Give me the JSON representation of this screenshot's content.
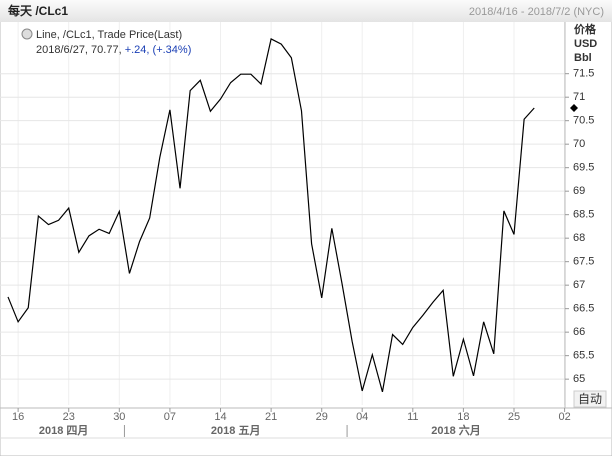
{
  "chart_data": {
    "type": "line",
    "title": "每天 /CLc1",
    "date_range": "2018/4/16 - 2018/7/2 (NYC)",
    "unit_labels": [
      "价格",
      "USD",
      "Bbl"
    ],
    "auto_button": "自动",
    "legend": {
      "series_label": "Line, /CLc1, Trade Price(Last)",
      "last": "2018/6/27, 70.77,",
      "change": "+.24, (+.34%)"
    },
    "x": [
      "2018-04-13",
      "2018-04-16",
      "2018-04-17",
      "2018-04-18",
      "2018-04-19",
      "2018-04-20",
      "2018-04-23",
      "2018-04-24",
      "2018-04-25",
      "2018-04-26",
      "2018-04-27",
      "2018-04-30",
      "2018-05-01",
      "2018-05-02",
      "2018-05-03",
      "2018-05-04",
      "2018-05-07",
      "2018-05-08",
      "2018-05-09",
      "2018-05-10",
      "2018-05-11",
      "2018-05-14",
      "2018-05-15",
      "2018-05-16",
      "2018-05-17",
      "2018-05-18",
      "2018-05-21",
      "2018-05-22",
      "2018-05-23",
      "2018-05-24",
      "2018-05-25",
      "2018-05-29",
      "2018-05-30",
      "2018-05-31",
      "2018-06-01",
      "2018-06-04",
      "2018-06-05",
      "2018-06-06",
      "2018-06-07",
      "2018-06-08",
      "2018-06-11",
      "2018-06-12",
      "2018-06-13",
      "2018-06-14",
      "2018-06-15",
      "2018-06-18",
      "2018-06-19",
      "2018-06-20",
      "2018-06-21",
      "2018-06-22",
      "2018-06-25",
      "2018-06-26",
      "2018-06-27"
    ],
    "series": [
      {
        "name": "/CLc1",
        "color": "#000000",
        "values": [
          66.75,
          66.22,
          66.52,
          68.47,
          68.29,
          68.38,
          68.64,
          67.7,
          68.05,
          68.19,
          68.1,
          68.57,
          67.25,
          67.93,
          68.43,
          69.72,
          70.73,
          69.06,
          71.14,
          71.36,
          70.7,
          70.96,
          71.31,
          71.49,
          71.49,
          71.28,
          72.24,
          72.13,
          71.84,
          70.71,
          67.88,
          66.73,
          68.21,
          67.04,
          65.81,
          64.75,
          65.52,
          64.73,
          65.95,
          65.74,
          66.1,
          66.36,
          66.64,
          66.89,
          65.06,
          65.85,
          65.07,
          66.22,
          65.54,
          68.58,
          68.08,
          70.53,
          70.77
        ]
      }
    ],
    "xticks": [
      {
        "value": "2018-04-16",
        "label": "16"
      },
      {
        "value": "2018-04-23",
        "label": "23"
      },
      {
        "value": "2018-04-30",
        "label": "30"
      },
      {
        "value": "2018-05-07",
        "label": "07"
      },
      {
        "value": "2018-05-14",
        "label": "14"
      },
      {
        "value": "2018-05-21",
        "label": "21"
      },
      {
        "value": "2018-05-29",
        "label": "29"
      },
      {
        "value": "2018-06-04",
        "label": "04"
      },
      {
        "value": "2018-06-11",
        "label": "11"
      },
      {
        "value": "2018-06-18",
        "label": "18"
      },
      {
        "value": "2018-06-25",
        "label": "25"
      },
      {
        "value": "2018-07-02",
        "label": "02"
      }
    ],
    "months": [
      "2018 四月",
      "2018 五月",
      "2018 六月"
    ],
    "ylim": [
      64.45,
      72.6
    ],
    "yticks": [
      65,
      65.5,
      66,
      66.5,
      67,
      67.5,
      68,
      68.5,
      69,
      69.5,
      70,
      70.5,
      71,
      71.5
    ],
    "grid": true
  }
}
